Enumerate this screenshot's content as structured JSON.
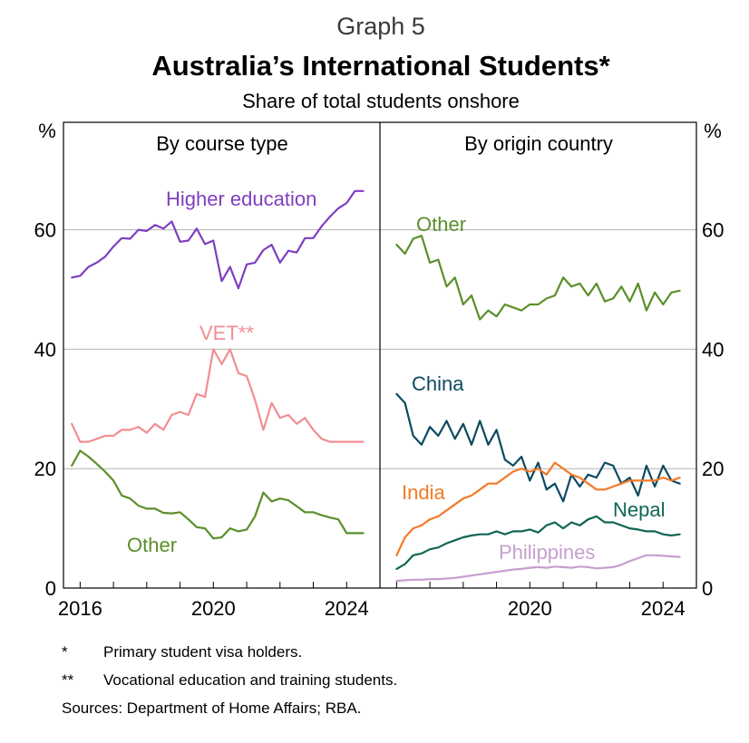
{
  "header": {
    "graph_number": "Graph 5",
    "title": "Australia’s International Students*",
    "subtitle": "Share of total students onshore"
  },
  "axes": {
    "unit_left": "%",
    "unit_right": "%",
    "y_ticks": [
      "0",
      "20",
      "40",
      "60"
    ]
  },
  "footnotes": [
    {
      "mark": "*",
      "text": "Primary student visa holders."
    },
    {
      "mark": "**",
      "text": "Vocational education and training students."
    }
  ],
  "sources": "Sources: Department of Home Affairs; RBA.",
  "colors": {
    "higher_education": "#7e3fc0",
    "vet": "#f28e93",
    "other_course": "#5a8f2a",
    "other_country": "#5a8f2a",
    "china": "#0d4a60",
    "india": "#f37a28",
    "nepal": "#0e6654",
    "philippines": "#c79fcf"
  },
  "chart_data": [
    {
      "type": "line",
      "title": "By course type",
      "xlabel": "",
      "ylabel": "%",
      "xlim": [
        2015.5,
        2025.0
      ],
      "ylim": [
        0,
        78
      ],
      "x_ticks": [
        "2016",
        "2020",
        "2024"
      ],
      "grid": true,
      "series": [
        {
          "name": "Higher education",
          "color_key": "higher_education",
          "x": [
            2015.75,
            2016.0,
            2016.25,
            2016.5,
            2016.75,
            2017.0,
            2017.25,
            2017.5,
            2017.75,
            2018.0,
            2018.25,
            2018.5,
            2018.75,
            2019.0,
            2019.25,
            2019.5,
            2019.75,
            2020.0,
            2020.25,
            2020.5,
            2020.75,
            2021.0,
            2021.25,
            2021.5,
            2021.75,
            2022.0,
            2022.25,
            2022.5,
            2022.75,
            2023.0,
            2023.25,
            2023.5,
            2023.75,
            2024.0,
            2024.25,
            2024.5
          ],
          "values": [
            52.0,
            52.3,
            53.8,
            54.5,
            55.5,
            57.2,
            58.6,
            58.5,
            60.0,
            59.8,
            60.8,
            60.2,
            61.4,
            58.0,
            58.2,
            60.2,
            57.6,
            58.2,
            51.4,
            53.8,
            50.2,
            54.2,
            54.5,
            56.6,
            57.5,
            54.5,
            56.5,
            56.2,
            58.6,
            58.6,
            60.6,
            62.2,
            63.6,
            64.5,
            66.5,
            66.5
          ]
        },
        {
          "name": "VET**",
          "color_key": "vet",
          "x": [
            2015.75,
            2016.0,
            2016.25,
            2016.5,
            2016.75,
            2017.0,
            2017.25,
            2017.5,
            2017.75,
            2018.0,
            2018.25,
            2018.5,
            2018.75,
            2019.0,
            2019.25,
            2019.5,
            2019.75,
            2020.0,
            2020.25,
            2020.5,
            2020.75,
            2021.0,
            2021.25,
            2021.5,
            2021.75,
            2022.0,
            2022.25,
            2022.5,
            2022.75,
            2023.0,
            2023.25,
            2023.5,
            2023.75,
            2024.0,
            2024.25,
            2024.5
          ],
          "values": [
            27.5,
            24.5,
            24.5,
            25.0,
            25.5,
            25.5,
            26.5,
            26.5,
            27.0,
            26.0,
            27.5,
            26.5,
            29.0,
            29.5,
            29.0,
            32.5,
            32.0,
            40.0,
            37.5,
            40.0,
            36.0,
            35.5,
            31.5,
            26.5,
            31.0,
            28.5,
            29.0,
            27.5,
            28.5,
            26.5,
            25.0,
            24.5,
            24.5,
            24.5,
            24.5,
            24.5
          ]
        },
        {
          "name": "Other",
          "color_key": "other_course",
          "x": [
            2015.75,
            2016.0,
            2016.25,
            2016.5,
            2016.75,
            2017.0,
            2017.25,
            2017.5,
            2017.75,
            2018.0,
            2018.25,
            2018.5,
            2018.75,
            2019.0,
            2019.25,
            2019.5,
            2019.75,
            2020.0,
            2020.25,
            2020.5,
            2020.75,
            2021.0,
            2021.25,
            2021.5,
            2021.75,
            2022.0,
            2022.25,
            2022.5,
            2022.75,
            2023.0,
            2023.25,
            2023.5,
            2023.75,
            2024.0,
            2024.25,
            2024.5
          ],
          "values": [
            20.5,
            23.0,
            22.0,
            20.8,
            19.5,
            18.0,
            15.5,
            15.0,
            13.8,
            13.3,
            13.3,
            12.6,
            12.5,
            12.7,
            11.5,
            10.2,
            10.0,
            8.3,
            8.5,
            10.0,
            9.5,
            9.8,
            12.0,
            16.0,
            14.5,
            15.0,
            14.7,
            13.7,
            12.7,
            12.7,
            12.2,
            11.8,
            11.5,
            9.2,
            9.2,
            9.2
          ]
        }
      ]
    },
    {
      "type": "line",
      "title": "By origin country",
      "xlabel": "",
      "ylabel": "%",
      "xlim": [
        2015.5,
        2025.0
      ],
      "ylim": [
        0,
        78
      ],
      "x_ticks": [
        "2020",
        "2024"
      ],
      "grid": true,
      "series": [
        {
          "name": "Other",
          "color_key": "other_country",
          "x": [
            2016.0,
            2016.25,
            2016.5,
            2016.75,
            2017.0,
            2017.25,
            2017.5,
            2017.75,
            2018.0,
            2018.25,
            2018.5,
            2018.75,
            2019.0,
            2019.25,
            2019.5,
            2019.75,
            2020.0,
            2020.25,
            2020.5,
            2020.75,
            2021.0,
            2021.25,
            2021.5,
            2021.75,
            2022.0,
            2022.25,
            2022.5,
            2022.75,
            2023.0,
            2023.25,
            2023.5,
            2023.75,
            2024.0,
            2024.25,
            2024.5
          ],
          "values": [
            57.5,
            56.0,
            58.5,
            59.0,
            54.5,
            55.0,
            50.5,
            52.0,
            47.5,
            49.0,
            45.0,
            46.5,
            45.5,
            47.5,
            47.0,
            46.5,
            47.5,
            47.5,
            48.5,
            49.0,
            52.0,
            50.5,
            51.0,
            49.0,
            51.0,
            48.0,
            48.5,
            50.5,
            48.0,
            51.0,
            46.5,
            49.5,
            47.5,
            49.5,
            49.8
          ]
        },
        {
          "name": "China",
          "color_key": "china",
          "x": [
            2016.0,
            2016.25,
            2016.5,
            2016.75,
            2017.0,
            2017.25,
            2017.5,
            2017.75,
            2018.0,
            2018.25,
            2018.5,
            2018.75,
            2019.0,
            2019.25,
            2019.5,
            2019.75,
            2020.0,
            2020.25,
            2020.5,
            2020.75,
            2021.0,
            2021.25,
            2021.5,
            2021.75,
            2022.0,
            2022.25,
            2022.5,
            2022.75,
            2023.0,
            2023.25,
            2023.5,
            2023.75,
            2024.0,
            2024.25,
            2024.5
          ],
          "values": [
            32.5,
            31.0,
            25.5,
            24.0,
            27.0,
            25.5,
            28.0,
            25.0,
            27.5,
            24.0,
            28.0,
            24.0,
            26.5,
            21.5,
            20.5,
            22.0,
            18.0,
            21.0,
            16.5,
            17.5,
            14.5,
            19.0,
            17.0,
            19.0,
            18.5,
            21.0,
            20.5,
            17.5,
            18.5,
            15.5,
            20.5,
            17.0,
            20.5,
            18.0,
            17.5
          ]
        },
        {
          "name": "India",
          "color_key": "india",
          "x": [
            2016.0,
            2016.25,
            2016.5,
            2016.75,
            2017.0,
            2017.25,
            2017.5,
            2017.75,
            2018.0,
            2018.25,
            2018.5,
            2018.75,
            2019.0,
            2019.25,
            2019.5,
            2019.75,
            2020.0,
            2020.25,
            2020.5,
            2020.75,
            2021.0,
            2021.25,
            2021.5,
            2021.75,
            2022.0,
            2022.25,
            2022.5,
            2022.75,
            2023.0,
            2023.25,
            2023.5,
            2023.75,
            2024.0,
            2024.25,
            2024.5
          ],
          "values": [
            5.5,
            8.5,
            10.0,
            10.5,
            11.5,
            12.0,
            13.0,
            14.0,
            15.0,
            15.5,
            16.5,
            17.5,
            17.5,
            18.5,
            19.5,
            20.0,
            19.5,
            20.0,
            19.0,
            21.0,
            20.0,
            19.0,
            18.5,
            17.5,
            16.5,
            16.5,
            17.0,
            17.5,
            18.0,
            18.0,
            18.0,
            18.0,
            18.5,
            18.0,
            18.5
          ]
        },
        {
          "name": "Nepal",
          "color_key": "nepal",
          "x": [
            2016.0,
            2016.25,
            2016.5,
            2016.75,
            2017.0,
            2017.25,
            2017.5,
            2017.75,
            2018.0,
            2018.25,
            2018.5,
            2018.75,
            2019.0,
            2019.25,
            2019.5,
            2019.75,
            2020.0,
            2020.25,
            2020.5,
            2020.75,
            2021.0,
            2021.25,
            2021.5,
            2021.75,
            2022.0,
            2022.25,
            2022.5,
            2022.75,
            2023.0,
            2023.25,
            2023.5,
            2023.75,
            2024.0,
            2024.25,
            2024.5
          ],
          "values": [
            3.2,
            4.0,
            5.5,
            5.8,
            6.5,
            6.8,
            7.5,
            8.0,
            8.5,
            8.8,
            9.0,
            9.0,
            9.5,
            9.0,
            9.5,
            9.5,
            9.8,
            9.3,
            10.5,
            11.0,
            10.0,
            11.0,
            10.5,
            11.5,
            12.0,
            11.0,
            11.0,
            10.5,
            10.0,
            9.8,
            9.5,
            9.5,
            9.0,
            8.8,
            9.0
          ]
        },
        {
          "name": "Philippines",
          "color_key": "philippines",
          "x": [
            2016.0,
            2016.25,
            2016.5,
            2016.75,
            2017.0,
            2017.25,
            2017.5,
            2017.75,
            2018.0,
            2018.25,
            2018.5,
            2018.75,
            2019.0,
            2019.25,
            2019.5,
            2019.75,
            2020.0,
            2020.25,
            2020.5,
            2020.75,
            2021.0,
            2021.25,
            2021.5,
            2021.75,
            2022.0,
            2022.25,
            2022.5,
            2022.75,
            2023.0,
            2023.25,
            2023.5,
            2023.75,
            2024.0,
            2024.25,
            2024.5
          ],
          "values": [
            1.2,
            1.3,
            1.4,
            1.4,
            1.5,
            1.5,
            1.6,
            1.7,
            1.9,
            2.1,
            2.3,
            2.5,
            2.7,
            2.9,
            3.1,
            3.2,
            3.4,
            3.5,
            3.4,
            3.6,
            3.5,
            3.4,
            3.6,
            3.5,
            3.3,
            3.4,
            3.5,
            3.9,
            4.5,
            5.0,
            5.5,
            5.5,
            5.4,
            5.3,
            5.2
          ]
        }
      ]
    }
  ]
}
